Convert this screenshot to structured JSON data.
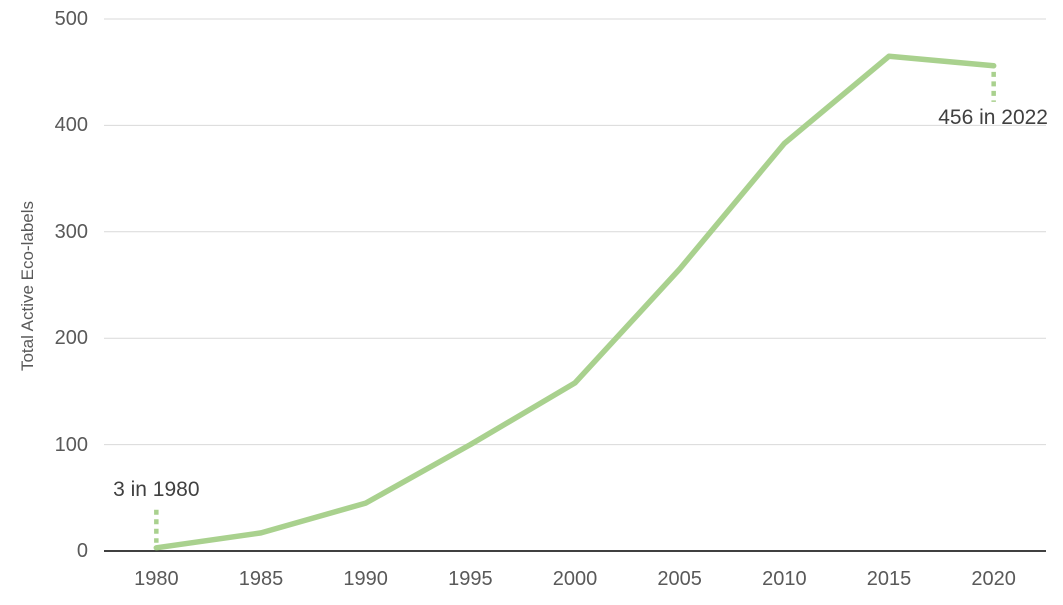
{
  "chart_data": {
    "type": "line",
    "title": "",
    "ylabel": "Total Active Eco-labels",
    "xlabel": "",
    "x": [
      1980,
      1985,
      1990,
      1995,
      2000,
      2005,
      2010,
      2015,
      2022
    ],
    "series": [
      {
        "name": "Total Active Eco-labels",
        "values": [
          3,
          17,
          45,
          100,
          158,
          265,
          383,
          465,
          456
        ]
      }
    ],
    "xtick_labels": [
      "1980",
      "1985",
      "1990",
      "1995",
      "2000",
      "2005",
      "2010",
      "2015",
      "2020"
    ],
    "yticks": [
      0,
      100,
      200,
      300,
      400,
      500
    ],
    "ytick_labels": [
      "0",
      "100",
      "200",
      "300",
      "400",
      "500"
    ],
    "ylim": [
      0,
      500
    ],
    "grid": "horizontal-only",
    "legend": "none",
    "annotations": [
      {
        "text": "3 in 1980",
        "year": 1980,
        "value": 3,
        "placement": "above"
      },
      {
        "text": "456 in 2022",
        "year": 2022,
        "value": 456,
        "placement": "below"
      }
    ],
    "colors": {
      "line": "#a9d18e",
      "gridline": "#d9d9d9",
      "axis_line": "#000000",
      "tick_text": "#595959",
      "annotation_text": "#404040",
      "background": "#ffffff"
    }
  }
}
